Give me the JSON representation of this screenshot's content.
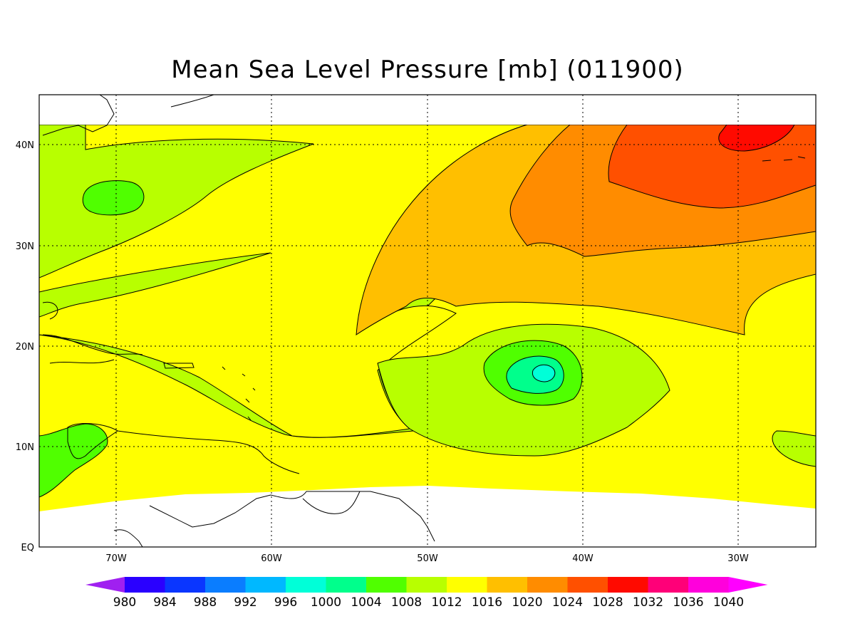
{
  "title": "Mean Sea Level Pressure [mb] (011900)",
  "lon_labels": [
    "70W",
    "60W",
    "50W",
    "40W",
    "30W"
  ],
  "lat_labels": [
    "40N",
    "30N",
    "20N",
    "10N",
    "EQ"
  ],
  "colorbar": {
    "values": [
      "980",
      "984",
      "988",
      "992",
      "996",
      "1000",
      "1004",
      "1008",
      "1012",
      "1016",
      "1020",
      "1024",
      "1028",
      "1032",
      "1036",
      "1040"
    ],
    "colors": [
      "#a020f0",
      "#2a00ff",
      "#0a36ff",
      "#0a7dff",
      "#00b8ff",
      "#00ffd8",
      "#00ff8c",
      "#50ff00",
      "#b8ff00",
      "#ffff00",
      "#ffbf00",
      "#ff8c00",
      "#ff5000",
      "#ff0a00",
      "#ff0078",
      "#ff00dc",
      "#ff00ff"
    ]
  },
  "field_colors": {
    "c1004": "#50ff00",
    "c1008": "#b8ff00",
    "c1012": "#ffff00",
    "c1016": "#ffbf00",
    "c1020": "#ff8c00",
    "c1024": "#ff5000",
    "c1028": "#ff0a00",
    "c996": "#00ffd8",
    "c1000": "#00ff8c"
  }
}
